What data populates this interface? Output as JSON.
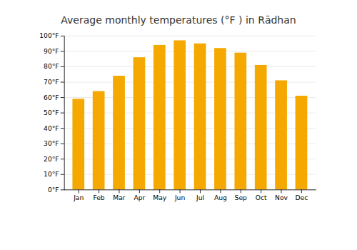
{
  "chart_data": {
    "type": "bar",
    "title": "Average monthly temperatures (°F ) in Rādhan",
    "categories": [
      "Jan",
      "Feb",
      "Mar",
      "Apr",
      "May",
      "Jun",
      "Jul",
      "Aug",
      "Sep",
      "Oct",
      "Nov",
      "Dec"
    ],
    "values": [
      59,
      64,
      74,
      86,
      94,
      97,
      95,
      92,
      89,
      81,
      71,
      61
    ],
    "color": "#F5A800",
    "ylim": [
      0,
      100
    ],
    "yticks": [
      {
        "value": 0,
        "label": "0°F"
      },
      {
        "value": 10,
        "label": "10°F"
      },
      {
        "value": 20,
        "label": "20°F"
      },
      {
        "value": 30,
        "label": "30°F"
      },
      {
        "value": 40,
        "label": "40°F"
      },
      {
        "value": 50,
        "label": "50°F"
      },
      {
        "value": 60,
        "label": "60°F"
      },
      {
        "value": 70,
        "label": "70°F"
      },
      {
        "value": 80,
        "label": "80°F"
      },
      {
        "value": 90,
        "label": "90°F"
      },
      {
        "value": 100,
        "label": "100°F"
      }
    ],
    "grid": true
  }
}
